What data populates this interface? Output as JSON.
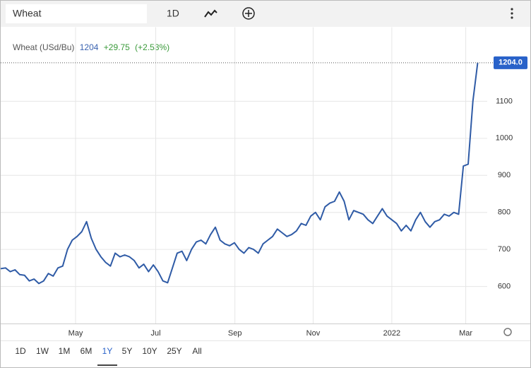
{
  "toolbar": {
    "search": "Wheat",
    "interval": "1D"
  },
  "chart_data": {
    "type": "line",
    "instrument": "Wheat (USd/Bu)",
    "price": "1204",
    "change": "+29.75",
    "change_percent": "(+2.53%)",
    "last_price": {
      "value": 1204,
      "label": "1204.0"
    },
    "color": "#2f5ba6",
    "values": [
      648,
      650,
      640,
      645,
      632,
      630,
      615,
      620,
      608,
      615,
      635,
      628,
      650,
      655,
      700,
      725,
      735,
      748,
      775,
      730,
      700,
      680,
      665,
      655,
      690,
      680,
      685,
      680,
      670,
      650,
      660,
      640,
      658,
      640,
      615,
      610,
      650,
      690,
      695,
      670,
      700,
      720,
      725,
      715,
      740,
      760,
      725,
      715,
      710,
      718,
      700,
      690,
      705,
      700,
      690,
      715,
      725,
      735,
      755,
      745,
      735,
      740,
      750,
      770,
      765,
      790,
      800,
      780,
      815,
      825,
      830,
      855,
      830,
      780,
      805,
      800,
      795,
      780,
      770,
      790,
      810,
      790,
      780,
      770,
      750,
      765,
      750,
      780,
      800,
      775,
      760,
      775,
      780,
      795,
      790,
      800,
      795,
      925,
      930,
      1100,
      1204
    ],
    "xlim": [
      0,
      102
    ],
    "xticks": [
      {
        "value": 15.7,
        "label": "May"
      },
      {
        "value": 32.5,
        "label": "Jul"
      },
      {
        "value": 49.1,
        "label": "Sep"
      },
      {
        "value": 65.5,
        "label": "Nov"
      },
      {
        "value": 82,
        "label": "2022"
      },
      {
        "value": 97.5,
        "label": "Mar"
      }
    ],
    "ylim": [
      500,
      1300
    ],
    "yticks": [
      600,
      700,
      800,
      900,
      1000,
      1100
    ],
    "grid": true
  },
  "ranges": {
    "options": [
      "1D",
      "1W",
      "1M",
      "6M",
      "1Y",
      "5Y",
      "10Y",
      "25Y",
      "All"
    ],
    "selected": 4
  }
}
